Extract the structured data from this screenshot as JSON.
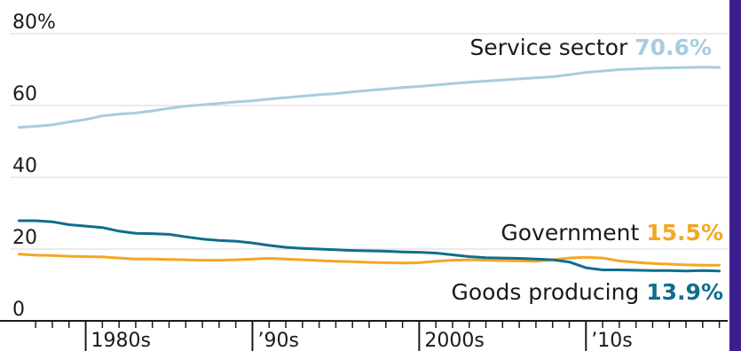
{
  "frame": {
    "color": "#3b1e8e"
  },
  "chart_data": {
    "type": "line",
    "title": "",
    "xlabel": "",
    "ylabel": "",
    "y_unit_label": "%",
    "ylim": [
      0,
      80
    ],
    "xlim": [
      1975.5,
      2018.5
    ],
    "yticks": [
      0,
      20,
      40,
      60,
      80
    ],
    "ytick_labels": [
      "0",
      "20",
      "40",
      "60",
      "80%"
    ],
    "xtick_labels": [
      {
        "x": 1980,
        "label": "1980s"
      },
      {
        "x": 1990,
        "label": "’90s"
      },
      {
        "x": 2000,
        "label": "2000s"
      },
      {
        "x": 2010,
        "label": "’10s"
      }
    ],
    "minor_tick_years": [
      1977,
      1978,
      1979,
      1981,
      1982,
      1983,
      1984,
      1985,
      1986,
      1987,
      1988,
      1989,
      1991,
      1992,
      1993,
      1994,
      1995,
      1996,
      1997,
      1998,
      1999,
      2001,
      2002,
      2003,
      2004,
      2005,
      2006,
      2007,
      2008,
      2009,
      2011,
      2012,
      2013,
      2014,
      2015,
      2016,
      2017,
      2018
    ],
    "grid": true,
    "series": [
      {
        "name": "Service sector",
        "value_label": "70.6%",
        "color": "#a7cce0",
        "label_color": "#a7cce0",
        "x": [
          1976,
          1977,
          1978,
          1979,
          1980,
          1981,
          1982,
          1983,
          1984,
          1985,
          1986,
          1987,
          1988,
          1989,
          1990,
          1991,
          1992,
          1993,
          1994,
          1995,
          1996,
          1997,
          1998,
          1999,
          2000,
          2001,
          2002,
          2003,
          2004,
          2005,
          2006,
          2007,
          2008,
          2009,
          2010,
          2011,
          2012,
          2013,
          2014,
          2015,
          2016,
          2017,
          2018
        ],
        "y": [
          53.9,
          54.2,
          54.6,
          55.4,
          56.1,
          57.1,
          57.6,
          57.9,
          58.5,
          59.2,
          59.8,
          60.2,
          60.6,
          61.0,
          61.3,
          61.8,
          62.2,
          62.6,
          63.0,
          63.3,
          63.8,
          64.2,
          64.6,
          65.0,
          65.3,
          65.7,
          66.1,
          66.5,
          66.8,
          67.1,
          67.4,
          67.7,
          68.0,
          68.6,
          69.2,
          69.6,
          70.0,
          70.2,
          70.4,
          70.5,
          70.6,
          70.7,
          70.6
        ]
      },
      {
        "name": "Government",
        "value_label": "15.5%",
        "color": "#f5a623",
        "label_color": "#f5a623",
        "x": [
          1976,
          1977,
          1978,
          1979,
          1980,
          1981,
          1982,
          1983,
          1984,
          1985,
          1986,
          1987,
          1988,
          1989,
          1990,
          1991,
          1992,
          1993,
          1994,
          1995,
          1996,
          1997,
          1998,
          1999,
          2000,
          2001,
          2002,
          2003,
          2004,
          2005,
          2006,
          2007,
          2008,
          2009,
          2010,
          2011,
          2012,
          2013,
          2014,
          2015,
          2016,
          2017,
          2018
        ],
        "y": [
          18.6,
          18.3,
          18.2,
          18.0,
          17.9,
          17.8,
          17.5,
          17.2,
          17.2,
          17.1,
          17.0,
          16.9,
          16.9,
          17.0,
          17.2,
          17.4,
          17.2,
          17.0,
          16.8,
          16.6,
          16.5,
          16.3,
          16.2,
          16.1,
          16.2,
          16.6,
          16.9,
          17.0,
          16.9,
          16.8,
          16.7,
          16.6,
          17.0,
          17.5,
          17.7,
          17.5,
          16.7,
          16.3,
          16.0,
          15.8,
          15.6,
          15.5,
          15.5
        ]
      },
      {
        "name": "Goods producing",
        "value_label": "13.9%",
        "color": "#0f6e8c",
        "label_color": "#0f6e8c",
        "x": [
          1976,
          1977,
          1978,
          1979,
          1980,
          1981,
          1982,
          1983,
          1984,
          1985,
          1986,
          1987,
          1988,
          1989,
          1990,
          1991,
          1992,
          1993,
          1994,
          1995,
          1996,
          1997,
          1998,
          1999,
          2000,
          2001,
          2002,
          2003,
          2004,
          2005,
          2006,
          2007,
          2008,
          2009,
          2010,
          2011,
          2012,
          2013,
          2014,
          2015,
          2016,
          2017,
          2018
        ],
        "y": [
          27.9,
          27.9,
          27.6,
          26.8,
          26.4,
          26.0,
          25.0,
          24.4,
          24.3,
          24.1,
          23.4,
          22.8,
          22.4,
          22.2,
          21.7,
          21.0,
          20.5,
          20.2,
          20.0,
          19.8,
          19.6,
          19.5,
          19.4,
          19.2,
          19.1,
          18.9,
          18.4,
          17.9,
          17.6,
          17.5,
          17.4,
          17.2,
          17.0,
          16.4,
          14.8,
          14.2,
          14.2,
          14.1,
          14.0,
          14.0,
          13.9,
          14.0,
          13.9
        ]
      }
    ]
  }
}
